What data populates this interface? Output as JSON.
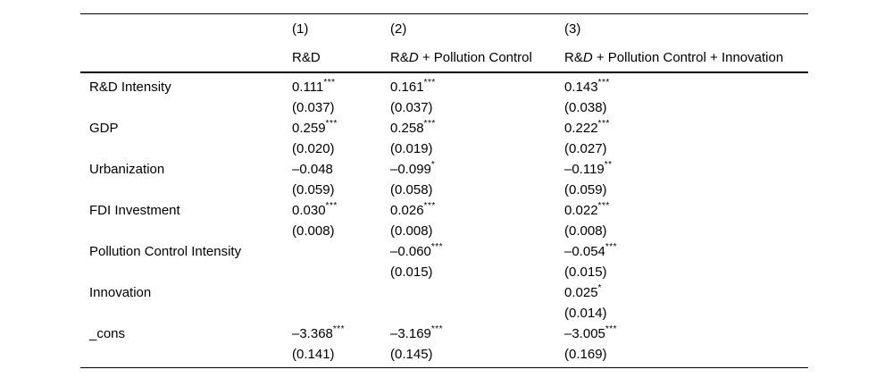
{
  "colors": {
    "text": "#000000",
    "background": "#ffffff",
    "rule": "#000000"
  },
  "table": {
    "columns": [
      {
        "num": "(1)",
        "label": "R&D"
      },
      {
        "num": "(2)",
        "label_pre": "R&",
        "label_d": "D",
        "label_post": " + Pollution Control"
      },
      {
        "num": "(3)",
        "label_pre": "R&",
        "label_d": "D",
        "label_post": " + Pollution Control + Innovation"
      }
    ],
    "rows": [
      {
        "label": "R&D Intensity",
        "cells": [
          {
            "v": "0.111",
            "stars": "***",
            "se": "(0.037)"
          },
          {
            "v": "0.161",
            "stars": "***",
            "se": "(0.037)"
          },
          {
            "v": "0.143",
            "stars": "***",
            "se": "(0.038)"
          }
        ]
      },
      {
        "label": "GDP",
        "cells": [
          {
            "v": "0.259",
            "stars": "***",
            "se": "(0.020)"
          },
          {
            "v": "0.258",
            "stars": "***",
            "se": "(0.019)"
          },
          {
            "v": "0.222",
            "stars": "***",
            "se": "(0.027)"
          }
        ]
      },
      {
        "label": "Urbanization",
        "cells": [
          {
            "v": "–0.048",
            "stars": "",
            "se": "(0.059)"
          },
          {
            "v": "–0.099",
            "stars": "*",
            "se": "(0.058)"
          },
          {
            "v": "–0.119",
            "stars": "**",
            "se": "(0.059)"
          }
        ]
      },
      {
        "label": "FDI Investment",
        "cells": [
          {
            "v": "0.030",
            "stars": "***",
            "se": "(0.008)"
          },
          {
            "v": "0.026",
            "stars": "***",
            "se": "(0.008)"
          },
          {
            "v": "0.022",
            "stars": "***",
            "se": "(0.008)"
          }
        ]
      },
      {
        "label": "Pollution Control Intensity",
        "cells": [
          null,
          {
            "v": "–0.060",
            "stars": "***",
            "se": "(0.015)"
          },
          {
            "v": "–0.054",
            "stars": "***",
            "se": "(0.015)"
          }
        ]
      },
      {
        "label": "Innovation",
        "cells": [
          null,
          null,
          {
            "v": "0.025",
            "stars": "*",
            "se": "(0.014)"
          }
        ]
      },
      {
        "label": "_cons",
        "cells": [
          {
            "v": "–3.368",
            "stars": "***",
            "se": "(0.141)"
          },
          {
            "v": "–3.169",
            "stars": "***",
            "se": "(0.145)"
          },
          {
            "v": "–3.005",
            "stars": "***",
            "se": "(0.169)"
          }
        ]
      }
    ]
  }
}
